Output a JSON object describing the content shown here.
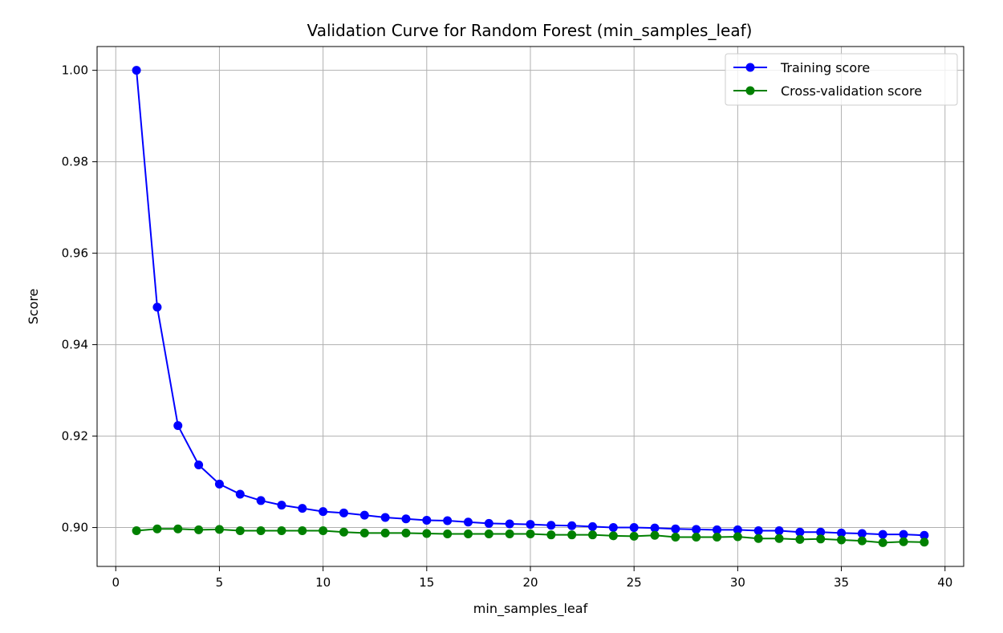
{
  "chart_data": {
    "type": "line",
    "title": "Validation Curve for Random Forest (min_samples_leaf)",
    "xlabel": "min_samples_leaf",
    "ylabel": "Score",
    "xlim": [
      -0.9,
      40.9
    ],
    "ylim": [
      0.8915,
      1.0052
    ],
    "x_ticks": [
      0,
      5,
      10,
      15,
      20,
      25,
      30,
      35,
      40
    ],
    "y_ticks": [
      0.9,
      0.92,
      0.94,
      0.96,
      0.98,
      1.0
    ],
    "x_tick_labels": [
      "0",
      "5",
      "10",
      "15",
      "20",
      "25",
      "30",
      "35",
      "40"
    ],
    "y_tick_labels": [
      "0.90",
      "0.92",
      "0.94",
      "0.96",
      "0.98",
      "1.00"
    ],
    "grid": true,
    "legend_position": "top-right",
    "x": [
      1,
      2,
      3,
      4,
      5,
      6,
      7,
      8,
      9,
      10,
      11,
      12,
      13,
      14,
      15,
      16,
      17,
      18,
      19,
      20,
      21,
      22,
      23,
      24,
      25,
      26,
      27,
      28,
      29,
      30,
      31,
      32,
      33,
      34,
      35,
      36,
      37,
      38,
      39
    ],
    "series": [
      {
        "name": "Training score",
        "color": "#0000ff",
        "marker": "circle",
        "values": [
          1.0,
          0.9482,
          0.9223,
          0.9137,
          0.9095,
          0.9073,
          0.9059,
          0.9049,
          0.9042,
          0.9035,
          0.9032,
          0.9027,
          0.9022,
          0.9019,
          0.9016,
          0.9015,
          0.9012,
          0.9009,
          0.9008,
          0.9007,
          0.9005,
          0.9004,
          0.9002,
          0.9,
          0.9,
          0.8999,
          0.8997,
          0.8996,
          0.8995,
          0.8995,
          0.8993,
          0.8993,
          0.899,
          0.899,
          0.8988,
          0.8987,
          0.8985,
          0.8985,
          0.8983
        ]
      },
      {
        "name": "Cross-validation score",
        "color": "#008000",
        "marker": "circle",
        "values": [
          0.8993,
          0.8997,
          0.8997,
          0.8995,
          0.8996,
          0.8993,
          0.8993,
          0.8993,
          0.8993,
          0.8993,
          0.899,
          0.8988,
          0.8988,
          0.8988,
          0.8987,
          0.8986,
          0.8986,
          0.8986,
          0.8986,
          0.8986,
          0.8984,
          0.8984,
          0.8984,
          0.8982,
          0.8981,
          0.8983,
          0.8979,
          0.8979,
          0.8979,
          0.898,
          0.8976,
          0.8976,
          0.8974,
          0.8975,
          0.8973,
          0.8971,
          0.8967,
          0.8969,
          0.8968
        ]
      }
    ]
  }
}
